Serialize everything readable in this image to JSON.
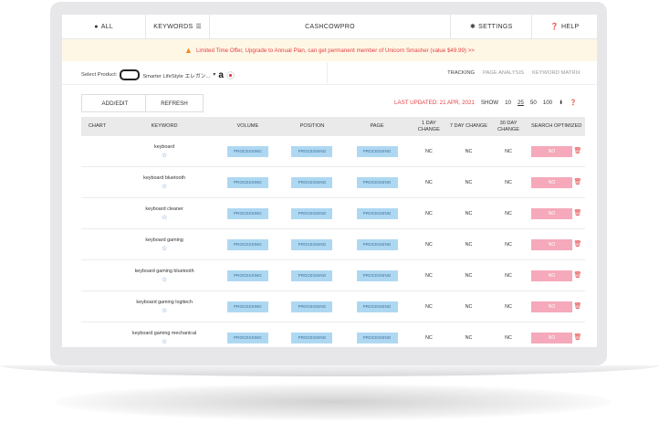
{
  "nav": {
    "all": "ALL",
    "keywords": "KEYWORDS",
    "brand": "CASHCOWPRO",
    "settings": "SETTINGS",
    "help": "HELP"
  },
  "offer": {
    "text": "Limited Time Offer, Upgrade to Annual Plan, can get permanent member of Unicorn Smasher (value $49.99) >>"
  },
  "product": {
    "label": "Select Product:",
    "name": "Smarter LifeStyle エレガン...",
    "marketplace": "a"
  },
  "tabs": [
    "TRACKING",
    "PAGE ANALYSIS",
    "KEYWORD MATRIX"
  ],
  "actions": {
    "add_edit": "ADD/EDIT",
    "refresh": "REFRESH"
  },
  "status": {
    "last_updated": "LAST UPDATED: 21 APR, 2021",
    "show": "SHOW",
    "page_sizes": [
      "10",
      "25",
      "50",
      "100"
    ],
    "selected_size": "25"
  },
  "table": {
    "headers": [
      "CHART",
      "KEYWORD",
      "VOLUME",
      "POSITION",
      "PAGE",
      "1 DAY CHANGE",
      "7 DAY CHANGE",
      "30 DAY CHANGE",
      "SEARCH OPTIMIZED"
    ],
    "rows": [
      {
        "keyword": "keyboard",
        "volume": "PROCESSING",
        "position": "PROCESSING",
        "page": "PROCESSING",
        "d1": "NC",
        "d7": "NC",
        "d30": "NC",
        "optimized": "NO"
      },
      {
        "keyword": "keyboard bluetooth",
        "volume": "PROCESSING",
        "position": "PROCESSING",
        "page": "PROCESSING",
        "d1": "NC",
        "d7": "NC",
        "d30": "NC",
        "optimized": "NO"
      },
      {
        "keyword": "keyboard cleaner",
        "volume": "PROCESSING",
        "position": "PROCESSING",
        "page": "PROCESSING",
        "d1": "NC",
        "d7": "NC",
        "d30": "NC",
        "optimized": "NO"
      },
      {
        "keyword": "keyboard gaming",
        "volume": "PROCESSING",
        "position": "PROCESSING",
        "page": "PROCESSING",
        "d1": "NC",
        "d7": "NC",
        "d30": "NC",
        "optimized": "NO"
      },
      {
        "keyword": "keyboard gaming bluetooth",
        "volume": "PROCESSING",
        "position": "PROCESSING",
        "page": "PROCESSING",
        "d1": "NC",
        "d7": "NC",
        "d30": "NC",
        "optimized": "NO"
      },
      {
        "keyword": "keyboard gaming logitech",
        "volume": "PROCESSING",
        "position": "PROCESSING",
        "page": "PROCESSING",
        "d1": "NC",
        "d7": "NC",
        "d30": "NC",
        "optimized": "NO"
      },
      {
        "keyword": "keyboard gaming mechanical",
        "volume": "PROCESSING",
        "position": "PROCESSING",
        "page": "PROCESSING",
        "d1": "NC",
        "d7": "NC",
        "d30": "NC",
        "optimized": "NO"
      }
    ]
  }
}
